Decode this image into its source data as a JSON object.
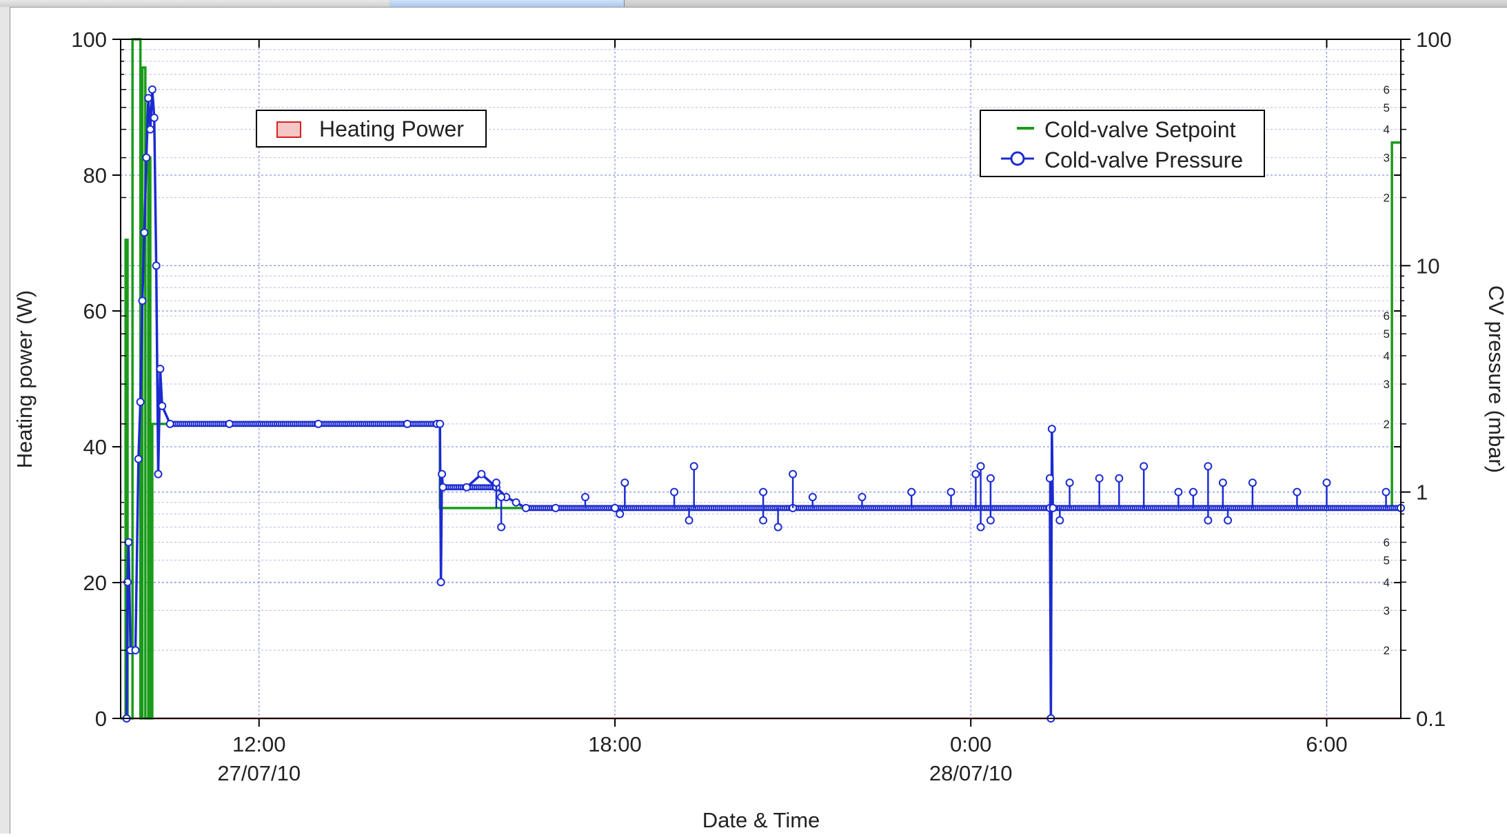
{
  "window": {
    "tabs": [
      {
        "label": "",
        "active": false
      },
      {
        "label": "",
        "active": false
      },
      {
        "label": "",
        "active": true
      }
    ]
  },
  "chart_data": {
    "type": "line",
    "title": "",
    "xlabel": "Date & Time",
    "ylabel_left": "Heating power (W)",
    "ylabel_right": "CV pressure (mbar)",
    "x_range": [
      "2010-07-27 09:40",
      "2010-07-28 07:15"
    ],
    "x_ticks": [
      {
        "t": "2010-07-27 12:00",
        "lines": [
          "12:00",
          "27/07/10"
        ]
      },
      {
        "t": "2010-07-27 18:00",
        "lines": [
          "18:00",
          ""
        ]
      },
      {
        "t": "2010-07-28 00:00",
        "lines": [
          "0:00",
          "28/07/10"
        ]
      },
      {
        "t": "2010-07-28 06:00",
        "lines": [
          "6:00",
          ""
        ]
      }
    ],
    "y_left": {
      "range": [
        0,
        100
      ],
      "ticks": [
        0,
        20,
        40,
        60,
        80,
        100
      ]
    },
    "y_right": {
      "scale": "log",
      "range": [
        0.1,
        100
      ],
      "labeled_ticks": [
        "0.1",
        "1",
        "10",
        "100"
      ],
      "minor_tick_labels": [
        "2",
        "3",
        "4",
        "5",
        "6"
      ]
    },
    "grid": true,
    "legends": [
      {
        "position": "top-left",
        "entries": [
          "Heating Power"
        ]
      },
      {
        "position": "top-right",
        "entries": [
          "Cold-valve Setpoint",
          "Cold-valve Pressure"
        ]
      }
    ],
    "colors": {
      "heating_power": "#d62020",
      "heating_power_fill": "#f4c6c6",
      "setpoint": "#1a9a1a",
      "pressure": "#1c2bd0",
      "grid_major": "#8c96e8",
      "grid_minor": "#bfc5f2"
    },
    "series": [
      {
        "name": "Heating Power",
        "axis": "left",
        "points": [
          [
            "2010-07-27 09:40",
            0
          ],
          [
            "2010-07-28 07:15",
            0
          ]
        ]
      },
      {
        "name": "Cold-valve Setpoint",
        "axis": "right",
        "style": "step",
        "points": [
          [
            "2010-07-27 09:40",
            0.1
          ],
          [
            "2010-07-27 09:45",
            0.1
          ],
          [
            "2010-07-27 09:45",
            13
          ],
          [
            "2010-07-27 09:47",
            13
          ],
          [
            "2010-07-27 09:47",
            0.1
          ],
          [
            "2010-07-27 09:52",
            0.1
          ],
          [
            "2010-07-27 09:52",
            100
          ],
          [
            "2010-07-27 10:00",
            100
          ],
          [
            "2010-07-27 10:00",
            0.1
          ],
          [
            "2010-07-27 10:02",
            0.1
          ],
          [
            "2010-07-27 10:02",
            75
          ],
          [
            "2010-07-27 10:05",
            75
          ],
          [
            "2010-07-27 10:05",
            0.1
          ],
          [
            "2010-07-27 10:08",
            0.1
          ],
          [
            "2010-07-27 10:08",
            30
          ],
          [
            "2010-07-27 10:10",
            30
          ],
          [
            "2010-07-27 10:10",
            0.1
          ],
          [
            "2010-07-27 10:12",
            0.1
          ],
          [
            "2010-07-27 10:12",
            2
          ],
          [
            "2010-07-27 15:03",
            2
          ],
          [
            "2010-07-27 15:03",
            0.85
          ],
          [
            "2010-07-28 07:06",
            0.85
          ],
          [
            "2010-07-28 07:06",
            35
          ],
          [
            "2010-07-28 07:15",
            35
          ]
        ]
      },
      {
        "name": "Cold-valve Pressure",
        "axis": "right",
        "points": [
          [
            "2010-07-27 09:46",
            0.1
          ],
          [
            "2010-07-27 09:47",
            0.4
          ],
          [
            "2010-07-27 09:48",
            0.6
          ],
          [
            "2010-07-27 09:50",
            0.2
          ],
          [
            "2010-07-27 09:55",
            0.2
          ],
          [
            "2010-07-27 09:58",
            1.4
          ],
          [
            "2010-07-27 10:00",
            2.5
          ],
          [
            "2010-07-27 10:02",
            7
          ],
          [
            "2010-07-27 10:04",
            14
          ],
          [
            "2010-07-27 10:06",
            30
          ],
          [
            "2010-07-27 10:08",
            55
          ],
          [
            "2010-07-27 10:10",
            40
          ],
          [
            "2010-07-27 10:12",
            60
          ],
          [
            "2010-07-27 10:14",
            45
          ],
          [
            "2010-07-27 10:16",
            10
          ],
          [
            "2010-07-27 10:18",
            1.2
          ],
          [
            "2010-07-27 10:20",
            3.5
          ],
          [
            "2010-07-27 10:22",
            2.4
          ],
          [
            "2010-07-27 10:30",
            2.0
          ],
          [
            "2010-07-27 11:30",
            2.0
          ],
          [
            "2010-07-27 13:00",
            2.0
          ],
          [
            "2010-07-27 14:30",
            2.0
          ],
          [
            "2010-07-27 15:00",
            2.0
          ],
          [
            "2010-07-27 15:03",
            2.0
          ],
          [
            "2010-07-27 15:04",
            0.4
          ],
          [
            "2010-07-27 15:05",
            1.2
          ],
          [
            "2010-07-27 15:06",
            1.05
          ],
          [
            "2010-07-27 15:30",
            1.05
          ],
          [
            "2010-07-27 15:45",
            1.2
          ],
          [
            "2010-07-27 16:00",
            1.05
          ],
          [
            "2010-07-27 16:10",
            0.95
          ],
          [
            "2010-07-27 16:20",
            0.9
          ],
          [
            "2010-07-27 16:30",
            0.85
          ],
          [
            "2010-07-27 17:00",
            0.85
          ],
          [
            "2010-07-27 18:00",
            0.85
          ],
          [
            "2010-07-27 21:00",
            0.85
          ],
          [
            "2010-07-28 01:20",
            0.85
          ],
          [
            "2010-07-28 01:21",
            0.1
          ],
          [
            "2010-07-28 01:22",
            1.9
          ],
          [
            "2010-07-28 01:23",
            0.85
          ],
          [
            "2010-07-28 07:15",
            0.85
          ]
        ],
        "spikes_up": [
          [
            "2010-07-27 16:00",
            1.1
          ],
          [
            "2010-07-27 16:05",
            0.95
          ],
          [
            "2010-07-27 17:30",
            0.95
          ],
          [
            "2010-07-27 18:10",
            1.1
          ],
          [
            "2010-07-27 19:00",
            1.0
          ],
          [
            "2010-07-27 19:20",
            1.3
          ],
          [
            "2010-07-27 20:30",
            1.0
          ],
          [
            "2010-07-27 21:00",
            1.2
          ],
          [
            "2010-07-27 21:20",
            0.95
          ],
          [
            "2010-07-27 22:10",
            0.95
          ],
          [
            "2010-07-27 23:00",
            1.0
          ],
          [
            "2010-07-27 23:40",
            1.0
          ],
          [
            "2010-07-28 00:05",
            1.2
          ],
          [
            "2010-07-28 00:10",
            1.3
          ],
          [
            "2010-07-28 00:20",
            1.15
          ],
          [
            "2010-07-28 01:20",
            1.15
          ],
          [
            "2010-07-28 01:40",
            1.1
          ],
          [
            "2010-07-28 02:10",
            1.15
          ],
          [
            "2010-07-28 02:30",
            1.15
          ],
          [
            "2010-07-28 02:55",
            1.3
          ],
          [
            "2010-07-28 03:30",
            1.0
          ],
          [
            "2010-07-28 03:45",
            1.0
          ],
          [
            "2010-07-28 04:00",
            1.3
          ],
          [
            "2010-07-28 04:15",
            1.1
          ],
          [
            "2010-07-28 04:45",
            1.1
          ],
          [
            "2010-07-28 05:30",
            1.0
          ],
          [
            "2010-07-28 06:00",
            1.1
          ],
          [
            "2010-07-28 07:00",
            1.0
          ]
        ],
        "spikes_down": [
          [
            "2010-07-27 16:05",
            0.7
          ],
          [
            "2010-07-27 18:05",
            0.8
          ],
          [
            "2010-07-27 19:15",
            0.75
          ],
          [
            "2010-07-27 20:30",
            0.75
          ],
          [
            "2010-07-27 20:45",
            0.7
          ],
          [
            "2010-07-28 00:10",
            0.7
          ],
          [
            "2010-07-28 00:20",
            0.75
          ],
          [
            "2010-07-28 01:30",
            0.75
          ],
          [
            "2010-07-28 04:00",
            0.75
          ],
          [
            "2010-07-28 04:20",
            0.75
          ]
        ]
      }
    ]
  }
}
